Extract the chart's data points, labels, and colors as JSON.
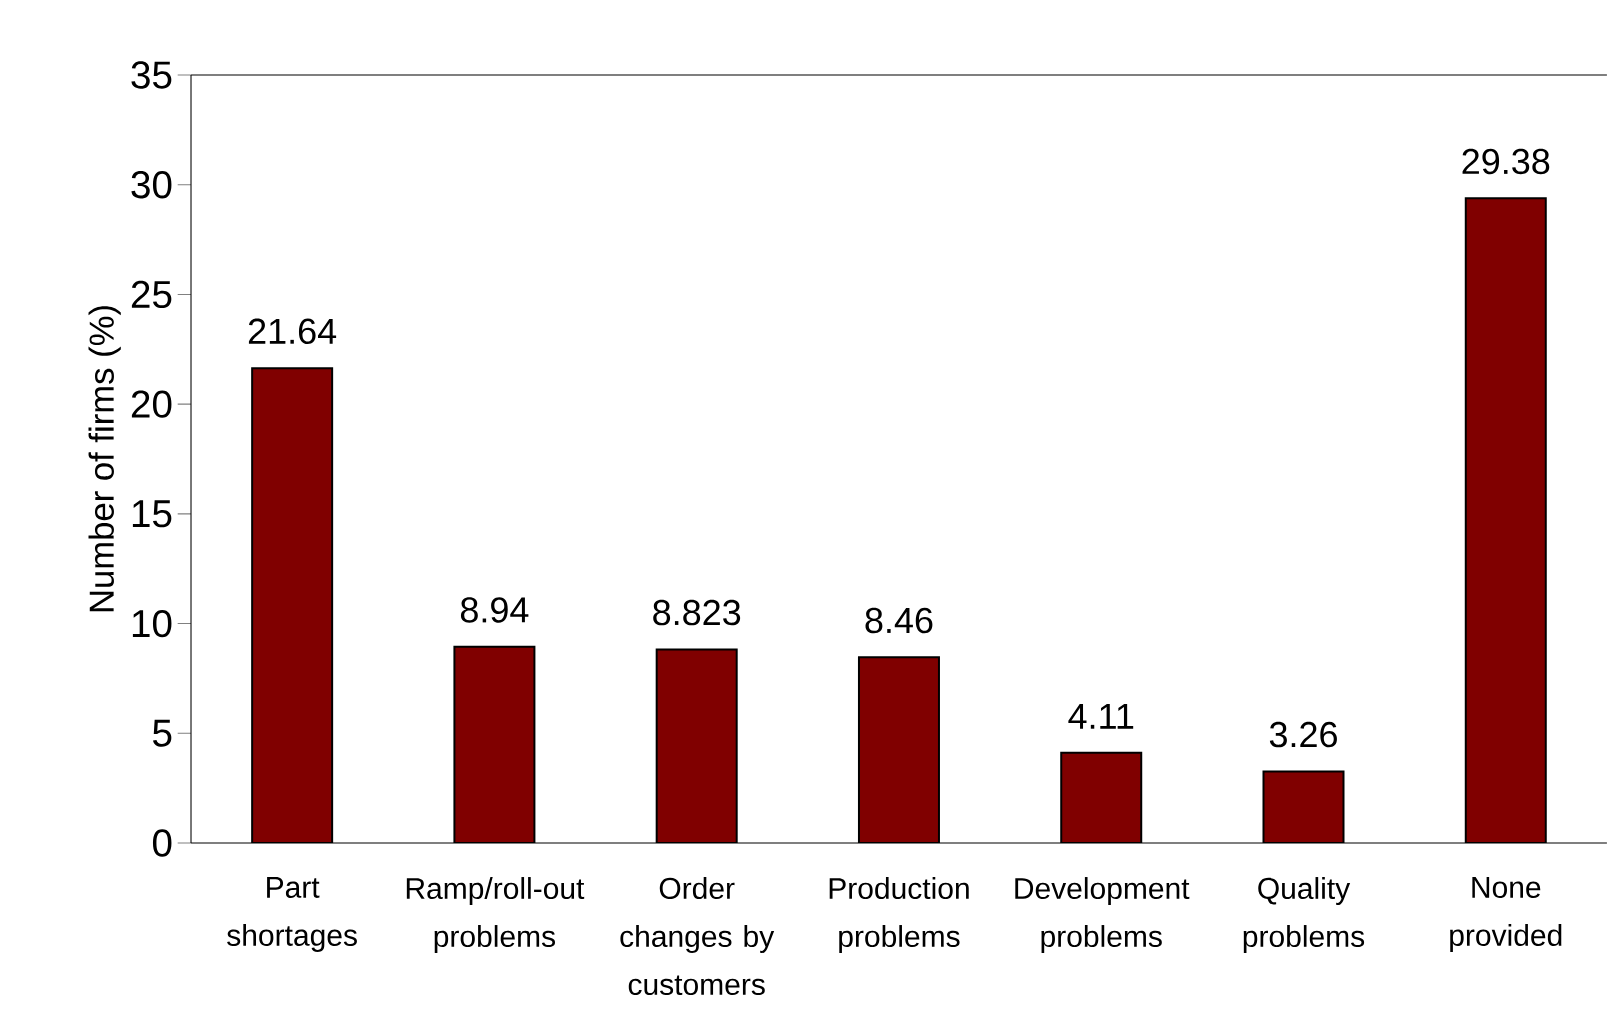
{
  "chart_data": {
    "type": "bar",
    "ylabel": "Number of firms (%)",
    "categories": [
      "Part shortages",
      "Ramp/roll-out problems",
      "Order changes by customers",
      "Production problems",
      "Development problems",
      "Quality problems",
      "None provided"
    ],
    "values": [
      21.64,
      8.94,
      8.823,
      8.46,
      4.11,
      3.26,
      29.38
    ],
    "color": "#800000",
    "data_labels": true,
    "grid": false,
    "ylim": [
      0,
      35
    ],
    "yticks": [
      0,
      5,
      10,
      15,
      20,
      25,
      30,
      35
    ]
  }
}
